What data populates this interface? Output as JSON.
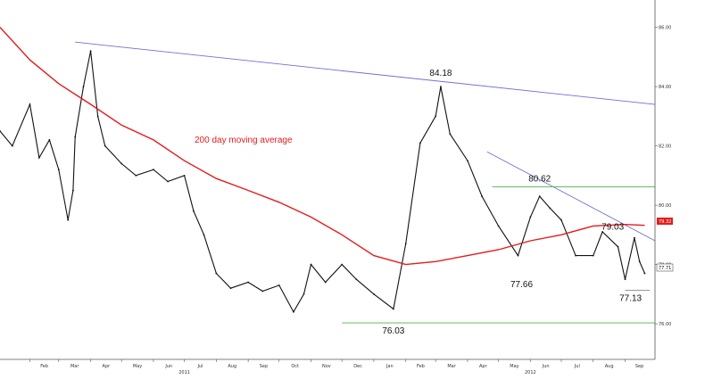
{
  "chart_data": {
    "type": "line",
    "title": "",
    "xlabel": "",
    "ylabel": "",
    "ylim": [
      74.8,
      86.8
    ],
    "grid": false,
    "x_ticks": [
      "Feb",
      "Mar",
      "Apr",
      "May",
      "Jun",
      "Jul",
      "Aug",
      "Sep",
      "Oct",
      "Nov",
      "Dec",
      "Jan",
      "Feb",
      "Mar",
      "Apr",
      "May",
      "Jun",
      "Jul",
      "Aug",
      "Sep"
    ],
    "x_years": [
      "2011",
      "2012"
    ],
    "y_ticks": [
      "76.00",
      "78.00",
      "80.00",
      "82.00",
      "84.00",
      "86.00"
    ],
    "last_values": {
      "moving_average": "79.32",
      "price": "77.71"
    },
    "series": [
      {
        "name": "",
        "kind": "price",
        "color": "#111111",
        "x": [
          "2011-01-03",
          "2011-01-15",
          "2011-02-01",
          "2011-02-10",
          "2011-02-20",
          "2011-03-01",
          "2011-03-10",
          "2011-03-15",
          "2011-03-17",
          "2011-03-25",
          "2011-04-01",
          "2011-04-08",
          "2011-04-15",
          "2011-05-01",
          "2011-05-15",
          "2011-06-01",
          "2011-06-15",
          "2011-07-01",
          "2011-07-10",
          "2011-07-20",
          "2011-08-01",
          "2011-08-15",
          "2011-09-01",
          "2011-09-15",
          "2011-10-01",
          "2011-10-15",
          "2011-10-25",
          "2011-11-01",
          "2011-11-15",
          "2011-12-01",
          "2011-12-15",
          "2012-01-01",
          "2012-01-20",
          "2012-02-01",
          "2012-02-15",
          "2012-03-01",
          "2012-03-06",
          "2012-03-15",
          "2012-04-01",
          "2012-04-15",
          "2012-05-01",
          "2012-05-20",
          "2012-06-01",
          "2012-06-10",
          "2012-06-20",
          "2012-07-01",
          "2012-07-15",
          "2012-08-01",
          "2012-08-10",
          "2012-08-25",
          "2012-09-01",
          "2012-09-10",
          "2012-09-15",
          "2012-09-20"
        ],
        "values": [
          82.5,
          82.0,
          83.4,
          81.6,
          82.2,
          81.2,
          79.5,
          80.5,
          82.3,
          84.0,
          85.2,
          83.0,
          82.0,
          81.4,
          81.0,
          81.2,
          80.8,
          81.0,
          79.8,
          79.0,
          77.7,
          77.2,
          77.4,
          77.1,
          77.3,
          76.4,
          77.0,
          78.0,
          77.4,
          78.0,
          77.5,
          77.0,
          76.5,
          78.7,
          82.1,
          83.0,
          84.0,
          82.4,
          81.5,
          80.3,
          79.3,
          78.3,
          79.6,
          80.3,
          79.9,
          79.5,
          78.3,
          78.3,
          79.1,
          78.6,
          77.5,
          78.9,
          78.1,
          77.7
        ]
      },
      {
        "name": "200 day moving average",
        "kind": "moving_average",
        "color": "#e41b1b",
        "x": [
          "2011-01-03",
          "2011-02-01",
          "2011-03-01",
          "2011-04-01",
          "2011-05-01",
          "2011-06-01",
          "2011-07-01",
          "2011-08-01",
          "2011-09-01",
          "2011-10-01",
          "2011-11-01",
          "2011-12-01",
          "2012-01-01",
          "2012-02-01",
          "2012-03-01",
          "2012-04-01",
          "2012-05-01",
          "2012-06-01",
          "2012-07-01",
          "2012-08-01",
          "2012-09-01",
          "2012-09-20"
        ],
        "values": [
          86.0,
          84.9,
          84.1,
          83.4,
          82.7,
          82.2,
          81.5,
          80.9,
          80.5,
          80.1,
          79.6,
          79.0,
          78.3,
          78.0,
          78.1,
          78.3,
          78.5,
          78.8,
          79.0,
          79.3,
          79.35,
          79.32
        ]
      }
    ],
    "annotations": [
      {
        "text": "84.18",
        "x": "2012-03-06",
        "y": 84.18
      },
      {
        "text": "76.03",
        "x": "2012-01-20",
        "y": 76.03
      },
      {
        "text": "80.62",
        "x": "2012-06-10",
        "y": 80.62
      },
      {
        "text": "77.66",
        "x": "2012-05-20",
        "y": 77.66
      },
      {
        "text": "79.03",
        "x": "2012-08-20",
        "y": 79.03
      },
      {
        "text": "77.13",
        "x": "2012-09-08",
        "y": 77.13
      }
    ],
    "trend_lines": [
      {
        "kind": "resistance",
        "color": "#6f6fd8",
        "from": {
          "x": "2011-03-17",
          "y": 85.5
        },
        "to": {
          "x": "2012-09-30",
          "y": 83.4
        }
      },
      {
        "kind": "resistance",
        "color": "#6f6fd8",
        "from": {
          "x": "2012-04-20",
          "y": 81.8
        },
        "to": {
          "x": "2012-09-30",
          "y": 78.8
        }
      },
      {
        "kind": "horizontal",
        "color": "#4cb54c",
        "from": {
          "x": "2011-12-01",
          "y": 76.03
        },
        "to": {
          "x": "2012-09-30",
          "y": 76.03
        }
      },
      {
        "kind": "horizontal",
        "color": "#4cb54c",
        "from": {
          "x": "2012-04-25",
          "y": 80.62
        },
        "to": {
          "x": "2012-09-30",
          "y": 80.62
        }
      },
      {
        "kind": "horizontal",
        "color": "#888888",
        "from": {
          "x": "2012-09-01",
          "y": 77.13
        },
        "to": {
          "x": "2012-09-25",
          "y": 77.13
        }
      }
    ]
  }
}
